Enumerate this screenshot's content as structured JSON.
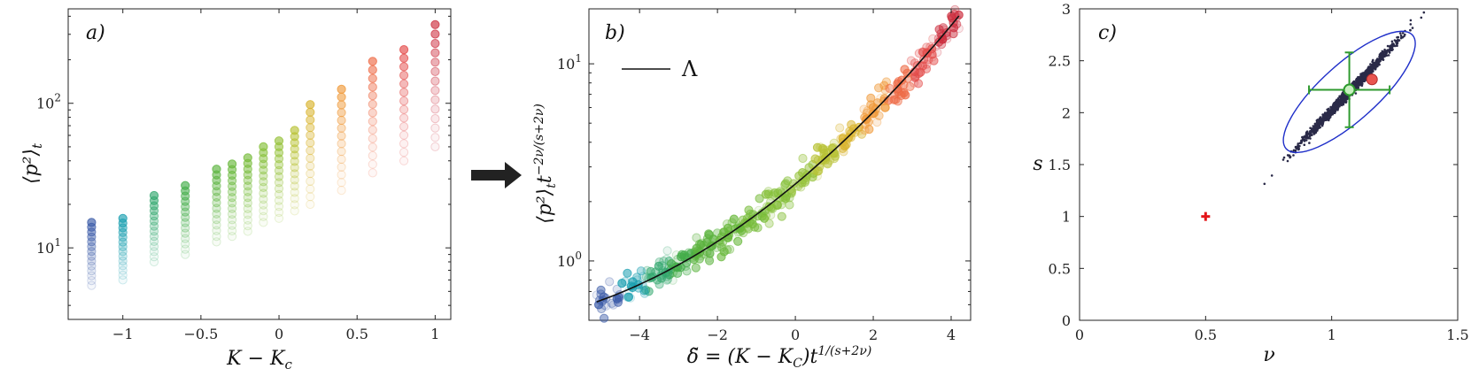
{
  "chart_data": [
    {
      "type": "scatter",
      "panel": "a)",
      "xlabel": "K − K",
      "xlabel_sub": "c",
      "ylabel": "⟨p²⟩",
      "ylabel_sub": "t",
      "yscale": "log",
      "xlim": [
        -1.35,
        1.1
      ],
      "ylim": [
        3.2,
        450
      ],
      "xticks": [
        "−1",
        "−0.5",
        "0",
        "0.5",
        "1"
      ],
      "yticks": [
        "10",
        "10"
      ],
      "ytick_exps": [
        "1",
        "2"
      ],
      "columns": [
        {
          "x": -1.2,
          "ymax": 15,
          "ymin": 5.5,
          "color": "#3b5ba8"
        },
        {
          "x": -1.0,
          "ymax": 16,
          "ymin": 6,
          "color": "#1a9fb0"
        },
        {
          "x": -0.8,
          "ymax": 23,
          "ymin": 8,
          "color": "#33a86f"
        },
        {
          "x": -0.6,
          "ymax": 27,
          "ymin": 9,
          "color": "#44ad4a"
        },
        {
          "x": -0.4,
          "ymax": 35,
          "ymin": 11,
          "color": "#5bb33e"
        },
        {
          "x": -0.3,
          "ymax": 38,
          "ymin": 12,
          "color": "#68b83b"
        },
        {
          "x": -0.2,
          "ymax": 42,
          "ymin": 13,
          "color": "#77bc3a"
        },
        {
          "x": -0.1,
          "ymax": 50,
          "ymin": 15,
          "color": "#86c03a"
        },
        {
          "x": 0.0,
          "ymax": 55,
          "ymin": 16,
          "color": "#96c23a"
        },
        {
          "x": 0.1,
          "ymax": 65,
          "ymin": 18,
          "color": "#b8c235"
        },
        {
          "x": 0.2,
          "ymax": 98,
          "ymin": 20,
          "color": "#d9b42e"
        },
        {
          "x": 0.4,
          "ymax": 125,
          "ymin": 25,
          "color": "#f09a3a"
        },
        {
          "x": 0.6,
          "ymax": 195,
          "ymin": 33,
          "color": "#ee6a45"
        },
        {
          "x": 0.8,
          "ymax": 235,
          "ymin": 40,
          "color": "#e34a48"
        },
        {
          "x": 1.0,
          "ymax": 350,
          "ymin": 50,
          "color": "#cc2e3e"
        }
      ]
    },
    {
      "type": "scatter",
      "panel": "b)",
      "xlabel": "δ̃ = (K − K",
      "xlabel_sub": "C",
      "xlabel_tail": ")t",
      "xlabel_sup": "1/(s+2ν)",
      "ylabel": "⟨p²⟩",
      "ylabel_sub": "t",
      "ylabel_t": "t",
      "ylabel_sup": "−2ν/(s+2ν)",
      "yscale": "log",
      "xlim": [
        -5.3,
        4.5
      ],
      "ylim": [
        0.5,
        19
      ],
      "xticks": [
        "−4",
        "−2",
        "0",
        "2",
        "4"
      ],
      "yticks": [
        "10",
        "10"
      ],
      "ytick_exps": [
        "0",
        "1"
      ],
      "legend": "Λ",
      "fit_curve": "Λ",
      "x_range_data": [
        -5.1,
        4.2
      ],
      "y_range_data": [
        0.62,
        17.5
      ]
    },
    {
      "type": "scatter",
      "panel": "c)",
      "xlabel": "ν",
      "ylabel": "s",
      "xlim": [
        0,
        1.5
      ],
      "ylim": [
        0,
        3
      ],
      "xticks": [
        "0",
        "0.5",
        "1",
        "1.5"
      ],
      "yticks": [
        "0",
        "0.5",
        "1",
        "1.5",
        "2",
        "2.5",
        "3"
      ],
      "cloud_center": [
        1.07,
        2.2
      ],
      "estimate": {
        "nu": 1.07,
        "s": 2.22,
        "nu_err": 0.16,
        "s_err": 0.36,
        "color": "#2e9a2e"
      },
      "red_point": {
        "nu": 1.16,
        "s": 2.32,
        "color": "#e8554f"
      },
      "reference_point": {
        "nu": 0.5,
        "s": 1.0,
        "color": "#e3161a"
      },
      "ellipse_color": "#1f2fc9"
    }
  ],
  "arrow": {
    "color": "#222222"
  }
}
